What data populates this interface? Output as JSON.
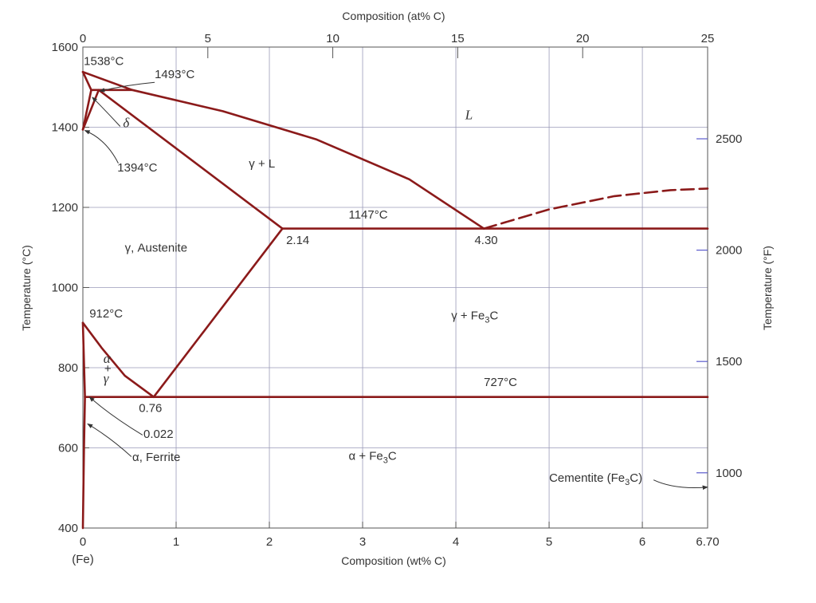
{
  "chart_data": {
    "type": "line",
    "title": "",
    "xlabel": "Composition (wt% C)",
    "xlabel_top": "Composition (at% C)",
    "ylabel": "Temperature (°C)",
    "ylabel_right": "Temperature (°F)",
    "xlim": [
      0,
      6.7
    ],
    "ylim": [
      400,
      1600
    ],
    "grid": true,
    "x_ticks": [
      "0",
      "1",
      "2",
      "3",
      "4",
      "5",
      "6",
      "6.70"
    ],
    "x_tick_values": [
      0,
      1,
      2,
      3,
      4,
      5,
      6,
      6.7
    ],
    "x_sublabel": "(Fe)",
    "y_ticks": [
      "400",
      "600",
      "800",
      "1000",
      "1200",
      "1400",
      "1600"
    ],
    "y_tick_values": [
      400,
      600,
      800,
      1000,
      1200,
      1400,
      1600
    ],
    "at_ticks": [
      "0",
      "5",
      "10",
      "15",
      "20",
      "25"
    ],
    "at_tick_values": [
      0,
      5,
      10,
      15,
      20,
      25
    ],
    "f_ticks": [
      "1000",
      "1500",
      "2000",
      "2500"
    ],
    "f_tick_values": [
      1000,
      1500,
      2000,
      2500
    ],
    "colors": {
      "phase_line": "#8b1a1a",
      "grid": "#9a9ab8",
      "text": "#333333"
    },
    "series": [
      {
        "points": [
          [
            0,
            1538
          ],
          [
            0.09,
            1493
          ]
        ]
      },
      {
        "points": [
          [
            0,
            1538
          ],
          [
            0.53,
            1493
          ]
        ]
      },
      {
        "points": [
          [
            0.09,
            1493
          ],
          [
            0.53,
            1493
          ]
        ]
      },
      {
        "points": [
          [
            0,
            1394
          ],
          [
            0.09,
            1493
          ]
        ]
      },
      {
        "points": [
          [
            0,
            1394
          ],
          [
            0.17,
            1493
          ]
        ]
      },
      {
        "points": [
          [
            0.17,
            1493
          ],
          [
            2.14,
            1147
          ]
        ]
      },
      {
        "points": [
          [
            0.53,
            1493
          ],
          [
            1.5,
            1440
          ],
          [
            2.5,
            1370
          ],
          [
            3.5,
            1270
          ],
          [
            4.3,
            1147
          ]
        ]
      },
      {
        "points": [
          [
            2.14,
            1147
          ],
          [
            6.7,
            1147
          ]
        ]
      },
      {
        "points": [
          [
            4.3,
            1147
          ],
          [
            5.0,
            1195
          ],
          [
            5.7,
            1228
          ],
          [
            6.3,
            1243
          ],
          [
            6.7,
            1247
          ]
        ],
        "dashed": true
      },
      {
        "points": [
          [
            0.76,
            727
          ],
          [
            2.14,
            1147
          ]
        ]
      },
      {
        "points": [
          [
            0,
            912
          ],
          [
            0.2,
            850
          ],
          [
            0.45,
            780
          ],
          [
            0.76,
            727
          ]
        ]
      },
      {
        "points": [
          [
            0,
            912
          ],
          [
            0.022,
            727
          ]
        ]
      },
      {
        "points": [
          [
            0.022,
            727
          ],
          [
            6.7,
            727
          ]
        ]
      },
      {
        "points": [
          [
            0.022,
            727
          ],
          [
            0.012,
            600
          ],
          [
            0,
            400
          ]
        ]
      }
    ],
    "annotations": [
      {
        "id": "t1538",
        "text": "1538°C",
        "x": 0.01,
        "y": 1555
      },
      {
        "id": "t1493",
        "text": "1493°C",
        "x": 0.77,
        "y": 1522
      },
      {
        "id": "t1394",
        "text": "1394°C",
        "x": 0.37,
        "y": 1290
      },
      {
        "id": "t1147",
        "text": "1147°C",
        "x": 2.85,
        "y": 1172
      },
      {
        "id": "c214",
        "text": "2.14",
        "x": 2.18,
        "y": 1108
      },
      {
        "id": "c430",
        "text": "4.30",
        "x": 4.2,
        "y": 1108
      },
      {
        "id": "t912",
        "text": "912°C",
        "x": 0.07,
        "y": 925
      },
      {
        "id": "t727",
        "text": "727°C",
        "x": 4.3,
        "y": 754
      },
      {
        "id": "c076",
        "text": "0.76",
        "x": 0.6,
        "y": 690
      },
      {
        "id": "c0022",
        "text": "0.022",
        "x": 0.65,
        "y": 625
      },
      {
        "id": "cementite",
        "text": "Cementite (Fe",
        "sub": "3",
        "after": "C)",
        "x": 5.0,
        "y": 515
      }
    ],
    "regions": [
      {
        "id": "liquid",
        "text": "L",
        "italic": true,
        "x": 4.1,
        "y": 1420
      },
      {
        "id": "gamma-liquid",
        "text": "γ + L",
        "x": 1.78,
        "y": 1300
      },
      {
        "id": "austenite",
        "text": "γ, Austenite",
        "x": 0.45,
        "y": 1090
      },
      {
        "id": "gamma-fe3c",
        "text": "γ + Fe",
        "sub": "3",
        "after": "C",
        "x": 3.95,
        "y": 920
      },
      {
        "id": "alpha-fe3c",
        "text": "α + Fe",
        "sub": "3",
        "after": "C",
        "x": 2.85,
        "y": 570
      },
      {
        "id": "ferrite",
        "text": "α, Ferrite",
        "x": 0.53,
        "y": 567
      },
      {
        "id": "delta",
        "text": "δ",
        "italic": true,
        "x": 0.43,
        "y": 1400
      },
      {
        "id": "alpha-gamma-a",
        "text": "α",
        "italic": true,
        "x": 0.22,
        "y": 812
      },
      {
        "id": "alpha-gamma-plus",
        "text": "+",
        "x": 0.23,
        "y": 788
      },
      {
        "id": "alpha-gamma-g",
        "text": "γ",
        "italic": true,
        "x": 0.22,
        "y": 762
      }
    ]
  }
}
